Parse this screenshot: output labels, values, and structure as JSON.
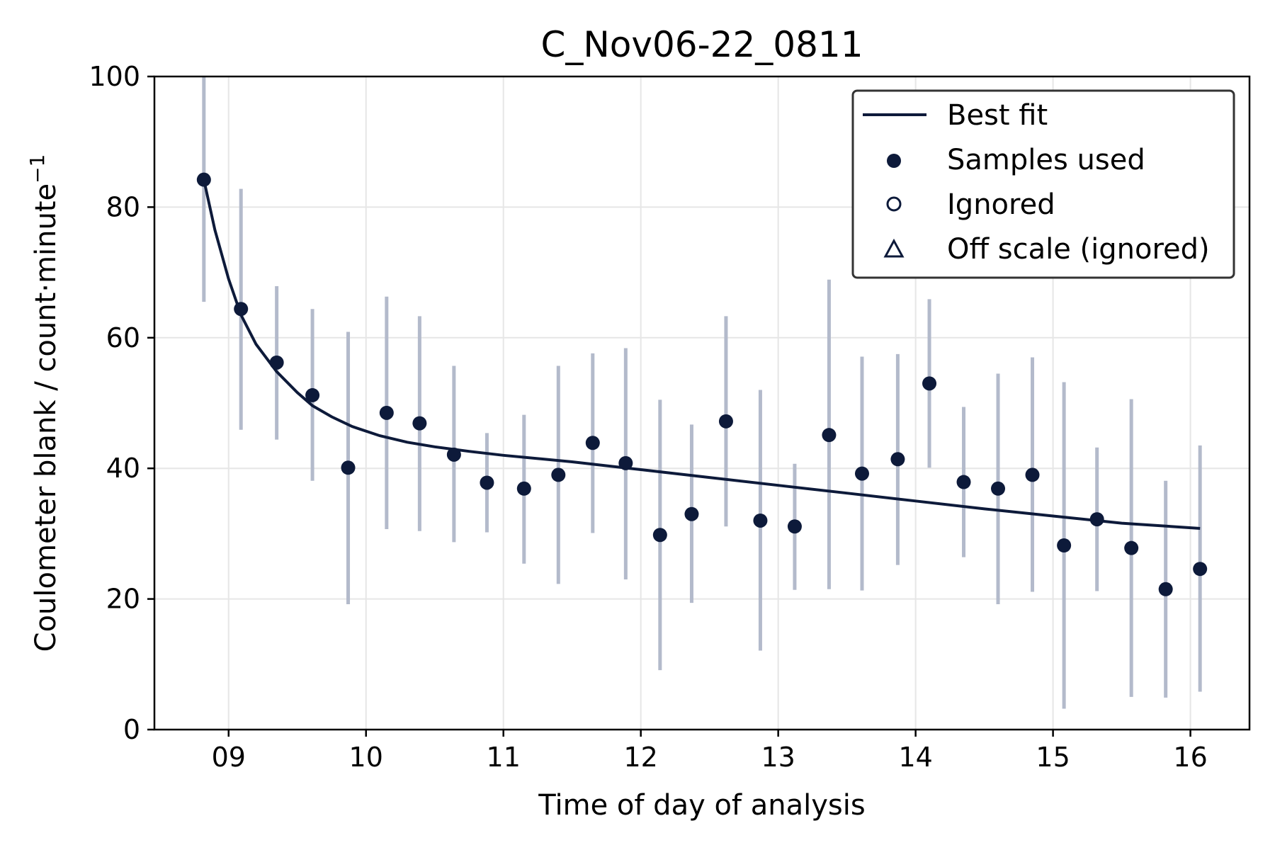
{
  "colors": {
    "primary": "#0d1a3a",
    "errorbar": "#b3bacb",
    "grid": "#e6e6e6",
    "axes": "#000000"
  },
  "chart_data": {
    "type": "scatter",
    "title": "C_Nov06-22_0811",
    "xlabel": "Time of day of analysis",
    "ylabel": "Coulometer blank / count·minute",
    "ylabel_superscript": "−1",
    "xlim": [
      8.46,
      16.43
    ],
    "ylim": [
      0,
      100
    ],
    "xticks": [
      {
        "value": 9,
        "label": "09"
      },
      {
        "value": 10,
        "label": "10"
      },
      {
        "value": 11,
        "label": "11"
      },
      {
        "value": 12,
        "label": "12"
      },
      {
        "value": 13,
        "label": "13"
      },
      {
        "value": 14,
        "label": "14"
      },
      {
        "value": 15,
        "label": "15"
      },
      {
        "value": 16,
        "label": "16"
      }
    ],
    "yticks": [
      0,
      20,
      40,
      60,
      80,
      100
    ],
    "grid": true,
    "legend": {
      "position": "top-right",
      "entries": [
        {
          "label": "Best fit",
          "marker": "line"
        },
        {
          "label": "Samples used",
          "marker": "filled-circle"
        },
        {
          "label": "Ignored",
          "marker": "open-circle"
        },
        {
          "label": "Off scale (ignored)",
          "marker": "open-triangle"
        }
      ]
    },
    "series": [
      {
        "name": "Samples used",
        "marker": "filled-circle",
        "points": [
          {
            "x": 8.82,
            "y": 84.2,
            "err_low": 65.5,
            "err_high": 103
          },
          {
            "x": 9.09,
            "y": 64.4,
            "err_low": 45.9,
            "err_high": 82.8
          },
          {
            "x": 9.35,
            "y": 56.2,
            "err_low": 44.4,
            "err_high": 67.9
          },
          {
            "x": 9.61,
            "y": 51.2,
            "err_low": 38.1,
            "err_high": 64.4
          },
          {
            "x": 9.87,
            "y": 40.1,
            "err_low": 19.2,
            "err_high": 60.9
          },
          {
            "x": 10.15,
            "y": 48.5,
            "err_low": 30.7,
            "err_high": 66.3
          },
          {
            "x": 10.39,
            "y": 46.9,
            "err_low": 30.4,
            "err_high": 63.3
          },
          {
            "x": 10.64,
            "y": 42.1,
            "err_low": 28.7,
            "err_high": 55.7
          },
          {
            "x": 10.88,
            "y": 37.8,
            "err_low": 30.2,
            "err_high": 45.4
          },
          {
            "x": 11.15,
            "y": 36.9,
            "err_low": 25.4,
            "err_high": 48.2
          },
          {
            "x": 11.4,
            "y": 39.0,
            "err_low": 22.3,
            "err_high": 55.7
          },
          {
            "x": 11.65,
            "y": 43.9,
            "err_low": 30.1,
            "err_high": 57.6
          },
          {
            "x": 11.89,
            "y": 40.8,
            "err_low": 23.0,
            "err_high": 58.4
          },
          {
            "x": 12.14,
            "y": 29.8,
            "err_low": 9.1,
            "err_high": 50.5
          },
          {
            "x": 12.37,
            "y": 33.0,
            "err_low": 19.4,
            "err_high": 46.7
          },
          {
            "x": 12.62,
            "y": 47.2,
            "err_low": 31.1,
            "err_high": 63.3
          },
          {
            "x": 12.87,
            "y": 32.0,
            "err_low": 12.1,
            "err_high": 52.0
          },
          {
            "x": 13.12,
            "y": 31.1,
            "err_low": 21.4,
            "err_high": 40.7
          },
          {
            "x": 13.37,
            "y": 45.1,
            "err_low": 21.5,
            "err_high": 68.9
          },
          {
            "x": 13.61,
            "y": 39.2,
            "err_low": 21.3,
            "err_high": 57.1
          },
          {
            "x": 13.87,
            "y": 41.4,
            "err_low": 25.2,
            "err_high": 57.5
          },
          {
            "x": 14.1,
            "y": 53.0,
            "err_low": 40.1,
            "err_high": 65.9
          },
          {
            "x": 14.35,
            "y": 37.9,
            "err_low": 26.4,
            "err_high": 49.4
          },
          {
            "x": 14.6,
            "y": 36.9,
            "err_low": 19.2,
            "err_high": 54.5
          },
          {
            "x": 14.85,
            "y": 39.0,
            "err_low": 21.1,
            "err_high": 57.0
          },
          {
            "x": 15.08,
            "y": 28.2,
            "err_low": 3.2,
            "err_high": 53.2
          },
          {
            "x": 15.32,
            "y": 32.2,
            "err_low": 21.2,
            "err_high": 43.2
          },
          {
            "x": 15.57,
            "y": 27.8,
            "err_low": 5.0,
            "err_high": 50.6
          },
          {
            "x": 15.82,
            "y": 21.5,
            "err_low": 4.9,
            "err_high": 38.1
          },
          {
            "x": 16.07,
            "y": 24.6,
            "err_low": 5.8,
            "err_high": 43.5
          }
        ]
      },
      {
        "name": "Best fit",
        "marker": "line",
        "points": [
          {
            "x": 8.82,
            "y": 84.2
          },
          {
            "x": 8.9,
            "y": 76.5
          },
          {
            "x": 9.0,
            "y": 69.0
          },
          {
            "x": 9.09,
            "y": 63.5
          },
          {
            "x": 9.2,
            "y": 59.0
          },
          {
            "x": 9.35,
            "y": 54.8
          },
          {
            "x": 9.5,
            "y": 51.6
          },
          {
            "x": 9.61,
            "y": 49.6
          },
          {
            "x": 9.75,
            "y": 47.9
          },
          {
            "x": 9.9,
            "y": 46.4
          },
          {
            "x": 10.1,
            "y": 45.0
          },
          {
            "x": 10.3,
            "y": 44.0
          },
          {
            "x": 10.5,
            "y": 43.3
          },
          {
            "x": 10.75,
            "y": 42.6
          },
          {
            "x": 11.0,
            "y": 42.0
          },
          {
            "x": 11.5,
            "y": 41.0
          },
          {
            "x": 12.0,
            "y": 39.8
          },
          {
            "x": 12.5,
            "y": 38.6
          },
          {
            "x": 13.0,
            "y": 37.4
          },
          {
            "x": 13.5,
            "y": 36.2
          },
          {
            "x": 14.0,
            "y": 35.0
          },
          {
            "x": 14.5,
            "y": 33.8
          },
          {
            "x": 15.0,
            "y": 32.7
          },
          {
            "x": 15.5,
            "y": 31.6
          },
          {
            "x": 16.07,
            "y": 30.8
          }
        ]
      }
    ]
  }
}
